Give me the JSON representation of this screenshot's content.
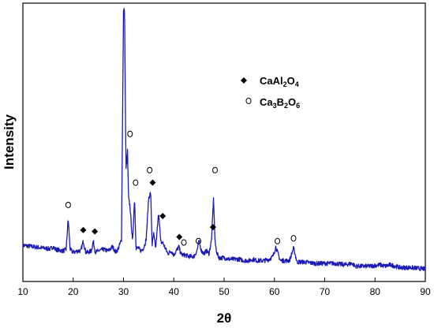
{
  "chart_data": {
    "type": "line",
    "title": "",
    "xlabel": "2θ",
    "ylabel": "Intensity",
    "xlim": [
      10,
      90
    ],
    "ylim": [
      0,
      100
    ],
    "x_ticks": [
      10,
      20,
      30,
      40,
      50,
      60,
      70,
      80,
      90
    ],
    "y_ticks_shown": false,
    "grid": false,
    "legend_position": "top-right",
    "series": [
      {
        "x": [
          10,
          12,
          14,
          15.5,
          16,
          16.5,
          18,
          18.6,
          19,
          19.4,
          20,
          21,
          21.5,
          22,
          22.5,
          23,
          23.6,
          24,
          24.4,
          25,
          26,
          27,
          27.8,
          28.5,
          29,
          29.6,
          30,
          30.2,
          30.5,
          30.8,
          31,
          31.3,
          31.8,
          32.2,
          32.5,
          32.9,
          33.5,
          34,
          34.5,
          35,
          35.4,
          35.7,
          36,
          36.4,
          37,
          37.4,
          37.8,
          38.3,
          38.8,
          39.5,
          40,
          40.5,
          41,
          41.4,
          41.8,
          42.3,
          43,
          44,
          44.6,
          45,
          45.5,
          46,
          46.5,
          47,
          47.5,
          47.9,
          48.2,
          48.6,
          49,
          50,
          51,
          52,
          53,
          54,
          55,
          55.7,
          56.5,
          58,
          59,
          59.7,
          60.3,
          60.7,
          61.2,
          62,
          63,
          63.8,
          64.5,
          66,
          68,
          70,
          72,
          74,
          75.5,
          76,
          77,
          79,
          81,
          82,
          83,
          85,
          87,
          90
        ],
        "y": [
          13,
          12.5,
          12,
          11.7,
          12.5,
          11.5,
          11,
          11.5,
          22.5,
          11.5,
          10.5,
          11,
          11,
          14.5,
          10.5,
          10.5,
          11,
          14.5,
          10.5,
          11,
          11.5,
          11,
          12.5,
          10.5,
          12,
          15,
          97,
          98,
          40,
          47,
          30,
          27,
          14,
          30,
          12,
          12,
          11,
          12,
          15,
          30,
          32,
          13,
          17,
          12,
          25,
          14,
          14,
          12,
          10,
          11,
          9.5,
          11,
          12.5,
          10,
          9.5,
          9.5,
          9,
          9,
          11,
          14.5,
          11,
          10,
          11,
          10,
          15,
          30,
          14,
          10,
          8.5,
          8.5,
          8,
          8,
          8,
          7.5,
          7.5,
          8,
          7.5,
          7.5,
          8,
          9,
          12.5,
          10,
          7.5,
          7.5,
          7.5,
          12,
          7,
          7,
          6.5,
          6.5,
          6.5,
          6,
          6.5,
          5.5,
          5.5,
          5.5,
          6,
          5.5,
          6,
          5,
          5,
          4.5
        ]
      }
    ],
    "legend": [
      {
        "marker": "filled-diamond",
        "label": "CaAl",
        "sub1": "2",
        "mid": "O",
        "sub2": "4"
      },
      {
        "marker": "open-circle",
        "label": "Ca",
        "sub1": "3",
        "mid": "B",
        "sub2": "2",
        "tail": "O",
        "sub3": "6"
      }
    ],
    "annotations": [
      {
        "marker": "open-circle",
        "x": 19,
        "y": 27.5
      },
      {
        "marker": "filled-diamond",
        "x": 22,
        "y": 18.5
      },
      {
        "marker": "filled-diamond",
        "x": 24.3,
        "y": 18
      },
      {
        "marker": "filled-diamond",
        "x": 30.2,
        "y": 103
      },
      {
        "marker": "open-circle",
        "x": 31.3,
        "y": 53
      },
      {
        "marker": "open-circle",
        "x": 32.4,
        "y": 35.5
      },
      {
        "marker": "open-circle",
        "x": 35.2,
        "y": 40
      },
      {
        "marker": "filled-diamond",
        "x": 35.8,
        "y": 35.5
      },
      {
        "marker": "filled-diamond",
        "x": 37.8,
        "y": 23.5
      },
      {
        "marker": "filled-diamond",
        "x": 41.1,
        "y": 16
      },
      {
        "marker": "open-circle",
        "x": 42,
        "y": 14
      },
      {
        "marker": "open-circle",
        "x": 44.9,
        "y": 14.5
      },
      {
        "marker": "open-circle",
        "x": 48.2,
        "y": 40
      },
      {
        "marker": "filled-diamond",
        "x": 47.8,
        "y": 19.5
      },
      {
        "marker": "open-circle",
        "x": 60.6,
        "y": 14.5
      },
      {
        "marker": "open-circle",
        "x": 63.8,
        "y": 15.5
      }
    ],
    "colors": {
      "line": "#1a1ab4",
      "axis": "#000000",
      "marker": "#000000"
    }
  }
}
